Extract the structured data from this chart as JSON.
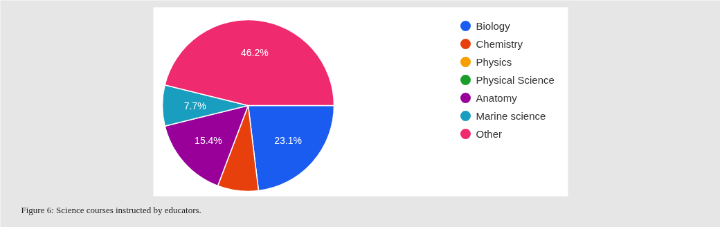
{
  "chart_data": {
    "type": "pie",
    "categories": [
      "Biology",
      "Chemistry",
      "Physics",
      "Physical Science",
      "Anatomy",
      "Marine science",
      "Other"
    ],
    "values": [
      23.1,
      7.7,
      0,
      0,
      15.4,
      7.7,
      46.2
    ],
    "colors": [
      "#1a5cf0",
      "#e8400c",
      "#f5a000",
      "#1a9e2a",
      "#990099",
      "#1a9ec0",
      "#f02a6e"
    ],
    "value_labels": [
      "23.1%",
      null,
      null,
      null,
      "15.4%",
      "7.7%",
      "46.2%"
    ],
    "legend": "right",
    "annotations": [
      "Figure 6: Science courses instructed by educators."
    ]
  }
}
